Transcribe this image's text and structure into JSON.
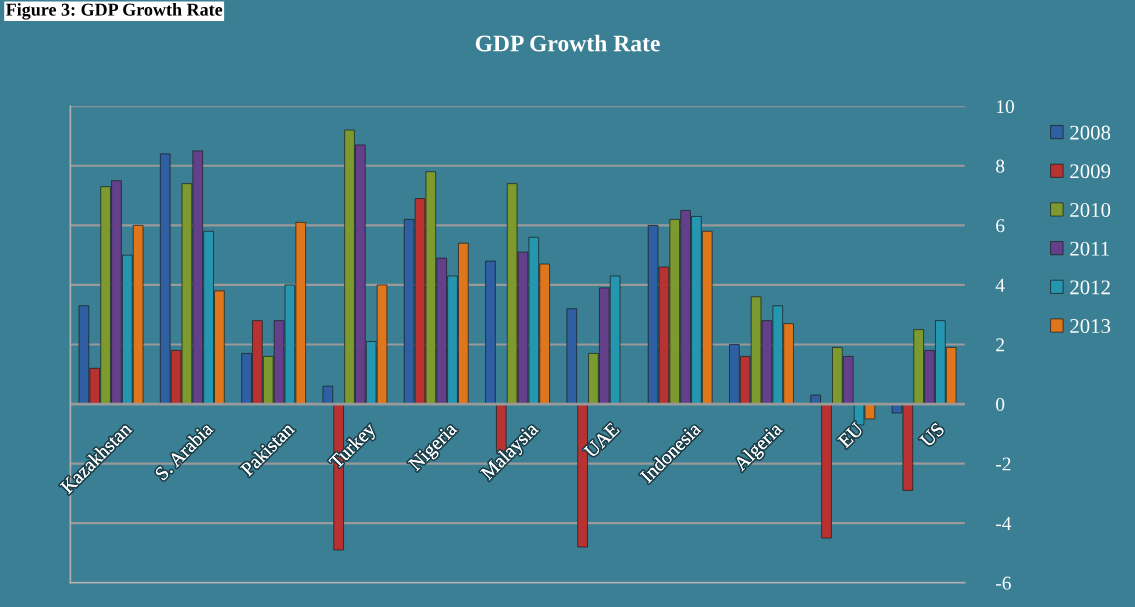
{
  "chart_data": {
    "type": "bar",
    "title": "GDP Growth Rate",
    "annotations": [
      "Figure 3: GDP Growth Rate"
    ],
    "categories": [
      "Kazakhstan",
      "S. Arabia",
      "Pakistan",
      "Turkey",
      "Nigeria",
      "Malaysia",
      "UAE",
      "Indonesia",
      "Algeria",
      "EU",
      "US"
    ],
    "series": [
      {
        "name": "2008",
        "color": "#2e5fa3",
        "values": [
          3.3,
          8.4,
          1.7,
          0.6,
          6.2,
          4.8,
          3.2,
          6.0,
          2.0,
          0.3,
          -0.3
        ]
      },
      {
        "name": "2009",
        "color": "#b83232",
        "values": [
          1.2,
          1.8,
          2.8,
          -4.9,
          6.9,
          -1.6,
          -4.8,
          4.6,
          1.6,
          -4.5,
          -2.9
        ]
      },
      {
        "name": "2010",
        "color": "#7d9a2e",
        "values": [
          7.3,
          7.4,
          1.6,
          9.2,
          7.8,
          7.4,
          1.7,
          6.2,
          3.6,
          1.9,
          2.5
        ]
      },
      {
        "name": "2011",
        "color": "#64408a",
        "values": [
          7.5,
          8.5,
          2.8,
          8.7,
          4.9,
          5.1,
          3.9,
          6.5,
          2.8,
          1.6,
          1.8
        ]
      },
      {
        "name": "2012",
        "color": "#2596b0",
        "values": [
          5.0,
          5.8,
          4.0,
          2.1,
          4.3,
          5.6,
          4.3,
          6.3,
          3.3,
          -0.7,
          2.8
        ]
      },
      {
        "name": "2013",
        "color": "#e0761c",
        "values": [
          6.0,
          3.8,
          6.1,
          4.0,
          5.4,
          4.7,
          null,
          5.8,
          2.7,
          -0.5,
          1.9
        ]
      }
    ],
    "ylim": [
      -6,
      10
    ],
    "yticks": [
      -6,
      -4,
      -2,
      0,
      2,
      4,
      6,
      8,
      10
    ],
    "grid": "y",
    "legend": "right"
  }
}
